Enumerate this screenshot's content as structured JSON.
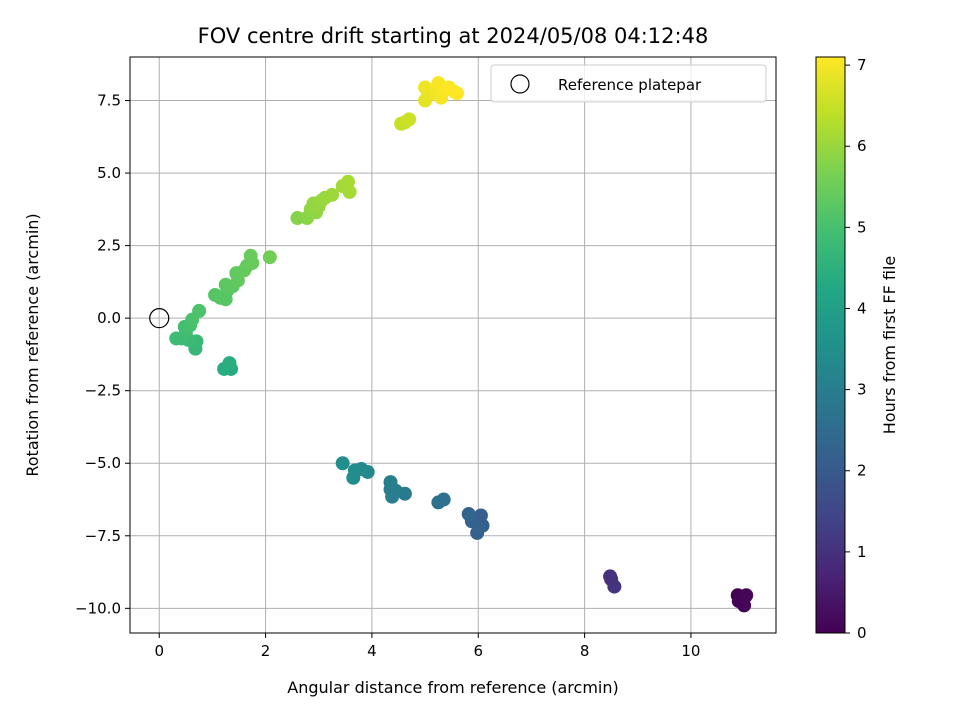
{
  "chart_data": {
    "type": "scatter",
    "title": "FOV centre drift starting at 2024/05/08 04:12:48",
    "xlabel": "Angular distance from reference (arcmin)",
    "ylabel": "Rotation from reference (arcmin)",
    "xlim": [
      -0.55,
      11.6
    ],
    "ylim": [
      -10.85,
      9.0
    ],
    "x_ticks": [
      0,
      2,
      4,
      6,
      8,
      10
    ],
    "y_ticks": [
      -10.0,
      -7.5,
      -5.0,
      -2.5,
      0.0,
      2.5,
      5.0,
      7.5
    ],
    "x_tick_labels": [
      "0",
      "2",
      "4",
      "6",
      "8",
      "10"
    ],
    "y_tick_labels": [
      "−10.0",
      "−7.5",
      "−5.0",
      "−2.5",
      "0.0",
      "2.5",
      "5.0",
      "7.5"
    ],
    "grid": true,
    "legend": {
      "position": "top-right",
      "label": "Reference platepar"
    },
    "reference_point": {
      "x": 0.0,
      "y": 0.0
    },
    "colorbar": {
      "label": "Hours from first FF file",
      "range": [
        0,
        7.1
      ],
      "ticks": [
        0,
        1,
        2,
        3,
        4,
        5,
        6,
        7
      ],
      "tick_labels": [
        "0",
        "1",
        "2",
        "3",
        "4",
        "5",
        "6",
        "7"
      ],
      "colormap": "viridis"
    },
    "points": [
      {
        "x": 10.88,
        "y": -9.55,
        "c": 0.0
      },
      {
        "x": 11.02,
        "y": -9.6,
        "c": 0.02
      },
      {
        "x": 10.9,
        "y": -9.75,
        "c": 0.05
      },
      {
        "x": 11.0,
        "y": -9.9,
        "c": 0.08
      },
      {
        "x": 11.04,
        "y": -9.55,
        "c": 0.1
      },
      {
        "x": 8.48,
        "y": -8.9,
        "c": 0.95
      },
      {
        "x": 8.5,
        "y": -9.0,
        "c": 1.0
      },
      {
        "x": 8.56,
        "y": -9.25,
        "c": 1.05
      },
      {
        "x": 6.08,
        "y": -7.15,
        "c": 2.1
      },
      {
        "x": 5.98,
        "y": -7.4,
        "c": 2.15
      },
      {
        "x": 6.05,
        "y": -6.8,
        "c": 2.2
      },
      {
        "x": 5.88,
        "y": -7.0,
        "c": 2.2
      },
      {
        "x": 5.82,
        "y": -6.75,
        "c": 2.3
      },
      {
        "x": 6.02,
        "y": -7.2,
        "c": 2.25
      },
      {
        "x": 5.35,
        "y": -6.25,
        "c": 2.6
      },
      {
        "x": 5.25,
        "y": -6.35,
        "c": 2.65
      },
      {
        "x": 4.62,
        "y": -6.05,
        "c": 2.9
      },
      {
        "x": 4.45,
        "y": -5.95,
        "c": 2.95
      },
      {
        "x": 4.35,
        "y": -5.9,
        "c": 3.0
      },
      {
        "x": 4.38,
        "y": -6.15,
        "c": 3.0
      },
      {
        "x": 4.35,
        "y": -5.65,
        "c": 3.05
      },
      {
        "x": 3.92,
        "y": -5.3,
        "c": 3.3
      },
      {
        "x": 3.8,
        "y": -5.2,
        "c": 3.35
      },
      {
        "x": 3.68,
        "y": -5.25,
        "c": 3.4
      },
      {
        "x": 3.65,
        "y": -5.5,
        "c": 3.4
      },
      {
        "x": 3.45,
        "y": -5.0,
        "c": 3.5
      },
      {
        "x": 1.35,
        "y": -1.75,
        "c": 4.35
      },
      {
        "x": 1.22,
        "y": -1.75,
        "c": 4.4
      },
      {
        "x": 1.32,
        "y": -1.55,
        "c": 4.45
      },
      {
        "x": 0.68,
        "y": -1.05,
        "c": 4.7
      },
      {
        "x": 0.7,
        "y": -0.8,
        "c": 4.75
      },
      {
        "x": 0.55,
        "y": -0.75,
        "c": 4.8
      },
      {
        "x": 0.42,
        "y": -0.7,
        "c": 4.85
      },
      {
        "x": 0.32,
        "y": -0.7,
        "c": 4.85
      },
      {
        "x": 0.5,
        "y": -0.5,
        "c": 4.9
      },
      {
        "x": 0.48,
        "y": -0.3,
        "c": 4.95
      },
      {
        "x": 0.58,
        "y": -0.25,
        "c": 5.0
      },
      {
        "x": 0.62,
        "y": -0.05,
        "c": 5.05
      },
      {
        "x": 0.75,
        "y": 0.25,
        "c": 5.1
      },
      {
        "x": 1.05,
        "y": 0.8,
        "c": 5.2
      },
      {
        "x": 1.15,
        "y": 0.7,
        "c": 5.2
      },
      {
        "x": 1.25,
        "y": 0.65,
        "c": 5.25
      },
      {
        "x": 1.28,
        "y": 0.95,
        "c": 5.25
      },
      {
        "x": 1.25,
        "y": 1.15,
        "c": 5.3
      },
      {
        "x": 1.38,
        "y": 1.1,
        "c": 5.3
      },
      {
        "x": 1.48,
        "y": 1.3,
        "c": 5.35
      },
      {
        "x": 1.45,
        "y": 1.55,
        "c": 5.35
      },
      {
        "x": 1.6,
        "y": 1.65,
        "c": 5.4
      },
      {
        "x": 1.65,
        "y": 1.8,
        "c": 5.4
      },
      {
        "x": 1.75,
        "y": 1.9,
        "c": 5.45
      },
      {
        "x": 1.72,
        "y": 2.15,
        "c": 5.45
      },
      {
        "x": 2.08,
        "y": 2.1,
        "c": 5.55
      },
      {
        "x": 2.6,
        "y": 3.45,
        "c": 5.8
      },
      {
        "x": 2.78,
        "y": 3.45,
        "c": 5.85
      },
      {
        "x": 2.85,
        "y": 3.75,
        "c": 5.9
      },
      {
        "x": 2.95,
        "y": 3.65,
        "c": 5.9
      },
      {
        "x": 2.9,
        "y": 3.95,
        "c": 5.95
      },
      {
        "x": 3.0,
        "y": 3.85,
        "c": 5.95
      },
      {
        "x": 3.05,
        "y": 4.05,
        "c": 6.0
      },
      {
        "x": 3.12,
        "y": 4.15,
        "c": 6.0
      },
      {
        "x": 3.25,
        "y": 4.25,
        "c": 6.05
      },
      {
        "x": 3.45,
        "y": 4.55,
        "c": 6.1
      },
      {
        "x": 3.55,
        "y": 4.7,
        "c": 6.15
      },
      {
        "x": 3.58,
        "y": 4.35,
        "c": 6.15
      },
      {
        "x": 4.55,
        "y": 6.7,
        "c": 6.5
      },
      {
        "x": 4.62,
        "y": 6.75,
        "c": 6.5
      },
      {
        "x": 4.7,
        "y": 6.85,
        "c": 6.55
      },
      {
        "x": 5.0,
        "y": 7.5,
        "c": 6.8
      },
      {
        "x": 5.05,
        "y": 7.65,
        "c": 6.85
      },
      {
        "x": 5.1,
        "y": 7.75,
        "c": 6.9
      },
      {
        "x": 5.0,
        "y": 7.95,
        "c": 6.95
      },
      {
        "x": 5.2,
        "y": 7.9,
        "c": 7.0
      },
      {
        "x": 5.25,
        "y": 8.1,
        "c": 7.05
      },
      {
        "x": 5.3,
        "y": 7.6,
        "c": 7.0
      },
      {
        "x": 5.35,
        "y": 7.85,
        "c": 7.05
      },
      {
        "x": 5.45,
        "y": 7.95,
        "c": 7.1
      },
      {
        "x": 5.55,
        "y": 7.8,
        "c": 7.1
      },
      {
        "x": 5.6,
        "y": 7.75,
        "c": 7.1
      }
    ]
  }
}
